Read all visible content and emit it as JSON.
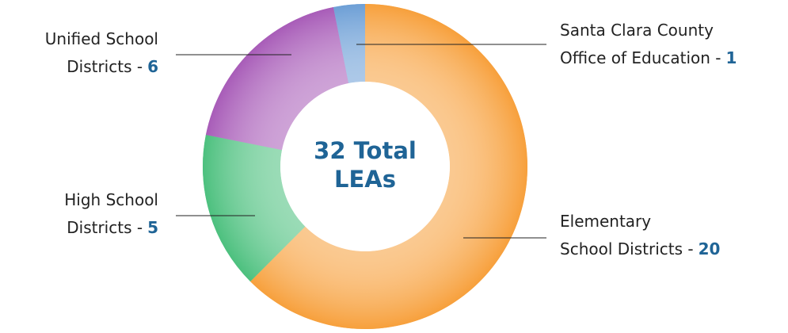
{
  "chart_data": {
    "type": "donut",
    "center_label": "32 Total\nLEAs",
    "categories": [
      "Elementary\nSchool Districts -",
      "High School\nDistricts -",
      "Unified School\nDistricts -",
      "Santa Clara County\nOffice of Education -"
    ],
    "values": [
      20,
      5,
      6,
      1
    ],
    "colors": [
      "#f7a03c",
      "#4cc07e",
      "#a85cb8",
      "#6d9fd6"
    ]
  }
}
